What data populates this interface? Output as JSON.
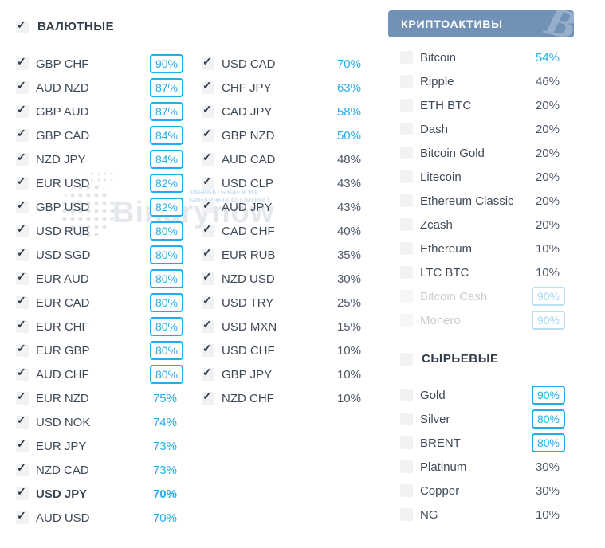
{
  "colors": {
    "accent_blue": "#25ade9",
    "crypto_header_bg": "#7191b7",
    "label_dark": "#3f4a57",
    "value_gray": "#4c5764",
    "disabled_text": "#c7cdd4",
    "disabled_accent": "#9ed8f2"
  },
  "icons": {
    "check": "✓",
    "bitcoin_watermark": "B"
  },
  "watermark": {
    "brand": "Binarynow",
    "tagline_line1": "ЗАРАБАТЫВАЕМ НА",
    "tagline_line2": "БИНАРНЫХ ОПЦИОНАХ"
  },
  "sections": {
    "currencies": {
      "title": "ВАЛЮТНЫЕ",
      "header_checked": true,
      "column1": [
        {
          "pair": "GBP CHF",
          "percent": "90%",
          "boxed": true,
          "highlight": true,
          "checked": true
        },
        {
          "pair": "AUD NZD",
          "percent": "87%",
          "boxed": true,
          "highlight": true,
          "checked": true
        },
        {
          "pair": "GBP AUD",
          "percent": "87%",
          "boxed": true,
          "highlight": true,
          "checked": true
        },
        {
          "pair": "GBP CAD",
          "percent": "84%",
          "boxed": true,
          "highlight": true,
          "checked": true
        },
        {
          "pair": "NZD JPY",
          "percent": "84%",
          "boxed": true,
          "highlight": true,
          "checked": true
        },
        {
          "pair": "EUR USD",
          "percent": "82%",
          "boxed": true,
          "highlight": true,
          "checked": true
        },
        {
          "pair": "GBP USD",
          "percent": "82%",
          "boxed": true,
          "highlight": true,
          "checked": true
        },
        {
          "pair": "USD RUB",
          "percent": "80%",
          "boxed": true,
          "highlight": true,
          "checked": true
        },
        {
          "pair": "USD SGD",
          "percent": "80%",
          "boxed": true,
          "highlight": true,
          "checked": true
        },
        {
          "pair": "EUR AUD",
          "percent": "80%",
          "boxed": true,
          "highlight": true,
          "checked": true
        },
        {
          "pair": "EUR CAD",
          "percent": "80%",
          "boxed": true,
          "highlight": true,
          "checked": true
        },
        {
          "pair": "EUR CHF",
          "percent": "80%",
          "boxed": true,
          "highlight": true,
          "checked": true
        },
        {
          "pair": "EUR GBP",
          "percent": "80%",
          "boxed": true,
          "highlight": true,
          "checked": true
        },
        {
          "pair": "AUD CHF",
          "percent": "80%",
          "boxed": true,
          "highlight": true,
          "checked": true
        },
        {
          "pair": "EUR NZD",
          "percent": "75%",
          "boxed": false,
          "highlight": true,
          "checked": true
        },
        {
          "pair": "USD NOK",
          "percent": "74%",
          "boxed": false,
          "highlight": true,
          "checked": true
        },
        {
          "pair": "EUR JPY",
          "percent": "73%",
          "boxed": false,
          "highlight": true,
          "checked": true
        },
        {
          "pair": "NZD CAD",
          "percent": "73%",
          "boxed": false,
          "highlight": true,
          "checked": true
        },
        {
          "pair": "USD JPY",
          "percent": "70%",
          "boxed": false,
          "highlight": true,
          "checked": true,
          "bold": true
        },
        {
          "pair": "AUD USD",
          "percent": "70%",
          "boxed": false,
          "highlight": true,
          "checked": true
        }
      ],
      "column2": [
        {
          "pair": "USD CAD",
          "percent": "70%",
          "boxed": false,
          "highlight": true,
          "checked": true
        },
        {
          "pair": "CHF JPY",
          "percent": "63%",
          "boxed": false,
          "highlight": true,
          "checked": true
        },
        {
          "pair": "CAD JPY",
          "percent": "58%",
          "boxed": false,
          "highlight": true,
          "checked": true
        },
        {
          "pair": "GBP NZD",
          "percent": "50%",
          "boxed": false,
          "highlight": true,
          "checked": true
        },
        {
          "pair": "AUD CAD",
          "percent": "48%",
          "boxed": false,
          "highlight": false,
          "checked": true
        },
        {
          "pair": "USD CLP",
          "percent": "43%",
          "boxed": false,
          "highlight": false,
          "checked": true
        },
        {
          "pair": "AUD JPY",
          "percent": "43%",
          "boxed": false,
          "highlight": false,
          "checked": true
        },
        {
          "pair": "CAD CHF",
          "percent": "40%",
          "boxed": false,
          "highlight": false,
          "checked": true
        },
        {
          "pair": "EUR RUB",
          "percent": "35%",
          "boxed": false,
          "highlight": false,
          "checked": true
        },
        {
          "pair": "NZD USD",
          "percent": "30%",
          "boxed": false,
          "highlight": false,
          "checked": true
        },
        {
          "pair": "USD TRY",
          "percent": "25%",
          "boxed": false,
          "highlight": false,
          "checked": true
        },
        {
          "pair": "USD MXN",
          "percent": "15%",
          "boxed": false,
          "highlight": false,
          "checked": true
        },
        {
          "pair": "USD CHF",
          "percent": "10%",
          "boxed": false,
          "highlight": false,
          "checked": true
        },
        {
          "pair": "GBP JPY",
          "percent": "10%",
          "boxed": false,
          "highlight": false,
          "checked": true
        },
        {
          "pair": "NZD CHF",
          "percent": "10%",
          "boxed": false,
          "highlight": false,
          "checked": true
        }
      ]
    },
    "crypto": {
      "title": "КРИПТОАКТИВЫ",
      "items": [
        {
          "name": "Bitcoin",
          "percent": "54%",
          "boxed": false,
          "highlight": true,
          "checked": false
        },
        {
          "name": "Ripple",
          "percent": "46%",
          "boxed": false,
          "highlight": false,
          "checked": false
        },
        {
          "name": "ETH BTC",
          "percent": "20%",
          "boxed": false,
          "highlight": false,
          "checked": false
        },
        {
          "name": "Dash",
          "percent": "20%",
          "boxed": false,
          "highlight": false,
          "checked": false
        },
        {
          "name": "Bitcoin Gold",
          "percent": "20%",
          "boxed": false,
          "highlight": false,
          "checked": false
        },
        {
          "name": "Litecoin",
          "percent": "20%",
          "boxed": false,
          "highlight": false,
          "checked": false
        },
        {
          "name": "Ethereum Classic",
          "percent": "20%",
          "boxed": false,
          "highlight": false,
          "checked": false
        },
        {
          "name": "Zcash",
          "percent": "20%",
          "boxed": false,
          "highlight": false,
          "checked": false
        },
        {
          "name": "Ethereum",
          "percent": "10%",
          "boxed": false,
          "highlight": false,
          "checked": false
        },
        {
          "name": "LTC BTC",
          "percent": "10%",
          "boxed": false,
          "highlight": false,
          "checked": false
        },
        {
          "name": "Bitcoin Cash",
          "percent": "90%",
          "boxed": true,
          "highlight": true,
          "checked": false,
          "disabled": true
        },
        {
          "name": "Monero",
          "percent": "90%",
          "boxed": true,
          "highlight": true,
          "checked": false,
          "disabled": true
        }
      ]
    },
    "commodities": {
      "title": "СЫРЬЕВЫЕ",
      "header_checked": false,
      "items": [
        {
          "name": "Gold",
          "percent": "90%",
          "boxed": true,
          "highlight": true,
          "checked": false
        },
        {
          "name": "Silver",
          "percent": "80%",
          "boxed": true,
          "highlight": true,
          "checked": false
        },
        {
          "name": "BRENT",
          "percent": "80%",
          "boxed": true,
          "highlight": true,
          "checked": false
        },
        {
          "name": "Platinum",
          "percent": "30%",
          "boxed": false,
          "highlight": false,
          "checked": false
        },
        {
          "name": "Copper",
          "percent": "30%",
          "boxed": false,
          "highlight": false,
          "checked": false
        },
        {
          "name": "NG",
          "percent": "10%",
          "boxed": false,
          "highlight": false,
          "checked": false
        }
      ]
    }
  }
}
